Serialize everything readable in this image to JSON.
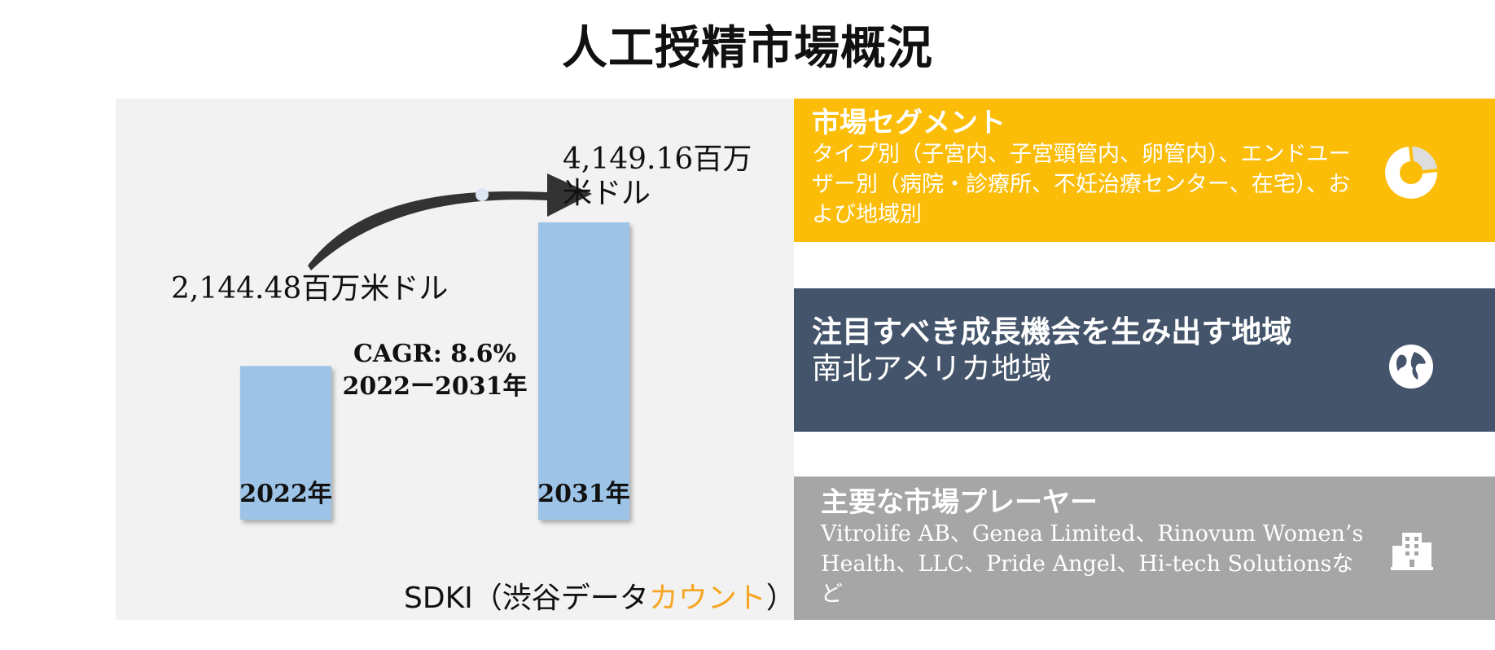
{
  "title": "人工授精市場概況",
  "chart_data": {
    "type": "bar",
    "categories": [
      "2022年",
      "2031年"
    ],
    "values": [
      2144.48,
      4149.16
    ],
    "value_labels": [
      "2,144.48百万米ドル",
      "4,149.16百万\n米ドル"
    ],
    "cagr_line1": "CAGR: 8.6%",
    "cagr_line2": "2022ー2031年",
    "bar_color": "#9dc3e6"
  },
  "source": {
    "prefix": "SDKI（渋谷データ",
    "accent": "カウント",
    "suffix": "）",
    "accent_color": "#f6a623"
  },
  "segment_box": {
    "heading": "市場セグメント",
    "body": "タイプ別（子宮内、子宮頸管内、卵管内）、エンドユーザー別（病院・診療所、不妊治療センター、在宅）、および地域別",
    "icon": "donut-chart-icon",
    "color": "#fbbd08"
  },
  "region_box": {
    "heading": "注目すべき成長機会を生み出す地域",
    "body": "南北アメリカ地域",
    "icon": "globe-icon",
    "color": "#44546a"
  },
  "players_box": {
    "heading": "主要な市場プレーヤー",
    "body": "Vitrolife AB、Genea Limited、Rinovum Women’s Health、LLC、Pride Angel、Hi-tech Solutionsなど",
    "icon": "buildings-icon",
    "color": "#a6a6a6"
  }
}
